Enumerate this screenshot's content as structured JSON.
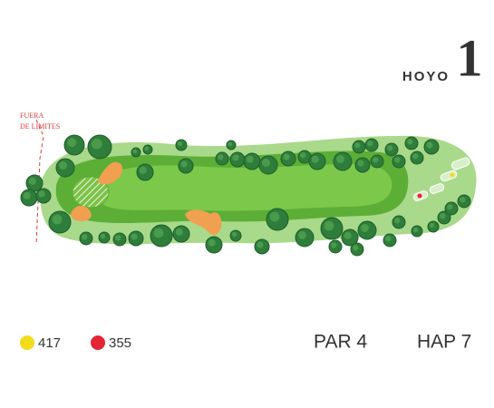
{
  "header": {
    "label": "HOYO",
    "number": "1"
  },
  "out_of_bounds": {
    "lines": [
      "FUERA",
      "DE LIMITES"
    ]
  },
  "tees": [
    {
      "color": "#f2dc1a",
      "distance": 417
    },
    {
      "color": "#e32636",
      "distance": 355
    }
  ],
  "par": "PAR 4",
  "handicap": "HAP 7"
}
